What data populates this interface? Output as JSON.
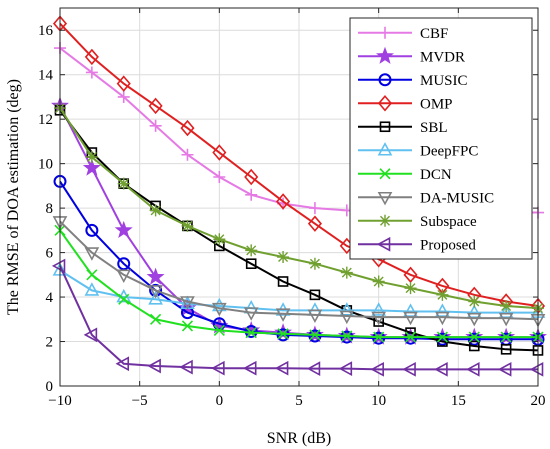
{
  "chart_data": {
    "type": "line",
    "title": "",
    "xlabel": "SNR (dB)",
    "ylabel": "The RMSE of DOA estimation (deg)",
    "xlim": [
      -10,
      20
    ],
    "ylim": [
      0,
      17
    ],
    "xticks": [
      -10,
      -5,
      0,
      5,
      10,
      15,
      20
    ],
    "yticks": [
      0,
      2,
      4,
      6,
      8,
      10,
      12,
      14,
      16
    ],
    "xtick_labels": [
      "−10",
      "−5",
      "0",
      "5",
      "10",
      "15",
      "20"
    ],
    "ytick_labels": [
      "0",
      "2",
      "4",
      "6",
      "8",
      "10",
      "12",
      "14",
      "16"
    ],
    "grid": true,
    "legend_position": "top-right",
    "x": [
      -10,
      -8,
      -6,
      -4,
      -2,
      0,
      2,
      4,
      6,
      8,
      10,
      12,
      14,
      16,
      18,
      20
    ],
    "series": [
      {
        "name": "CBF",
        "color": "#e57ae5",
        "marker": "plus",
        "values": [
          15.2,
          14.1,
          13.0,
          11.7,
          10.4,
          9.4,
          8.6,
          8.2,
          8.0,
          7.9,
          7.85,
          7.85,
          7.8,
          7.8,
          7.8,
          7.8
        ]
      },
      {
        "name": "MVDR",
        "color": "#a040e0",
        "marker": "star",
        "values": [
          12.6,
          9.8,
          7.0,
          4.9,
          3.5,
          2.7,
          2.5,
          2.4,
          2.3,
          2.25,
          2.2,
          2.2,
          2.2,
          2.2,
          2.2,
          2.2
        ]
      },
      {
        "name": "MUSIC",
        "color": "#0000e0",
        "marker": "circle",
        "values": [
          9.2,
          7.0,
          5.5,
          4.3,
          3.3,
          2.8,
          2.45,
          2.3,
          2.25,
          2.2,
          2.15,
          2.15,
          2.1,
          2.1,
          2.1,
          2.1
        ]
      },
      {
        "name": "OMP",
        "color": "#e02020",
        "marker": "diamond",
        "values": [
          16.3,
          14.8,
          13.6,
          12.6,
          11.6,
          10.5,
          9.4,
          8.3,
          7.3,
          6.3,
          5.7,
          5.0,
          4.5,
          4.1,
          3.8,
          3.6
        ]
      },
      {
        "name": "SBL",
        "color": "#000000",
        "marker": "square",
        "values": [
          12.4,
          10.5,
          9.1,
          8.1,
          7.2,
          6.3,
          5.5,
          4.7,
          4.1,
          3.4,
          2.9,
          2.4,
          2.0,
          1.8,
          1.65,
          1.6
        ]
      },
      {
        "name": "DeepFPC",
        "color": "#60c0f0",
        "marker": "triangle-up",
        "values": [
          5.2,
          4.3,
          4.0,
          3.9,
          3.7,
          3.6,
          3.5,
          3.4,
          3.4,
          3.4,
          3.4,
          3.35,
          3.35,
          3.3,
          3.3,
          3.3
        ]
      },
      {
        "name": "DCN",
        "color": "#20e020",
        "marker": "x",
        "values": [
          7.0,
          5.0,
          3.9,
          3.0,
          2.7,
          2.5,
          2.4,
          2.35,
          2.3,
          2.25,
          2.2,
          2.2,
          2.2,
          2.2,
          2.2,
          2.2
        ]
      },
      {
        "name": "DA-MUSIC",
        "color": "#808080",
        "marker": "triangle-down",
        "values": [
          7.4,
          6.0,
          5.0,
          4.3,
          3.8,
          3.5,
          3.3,
          3.25,
          3.2,
          3.15,
          3.1,
          3.1,
          3.1,
          3.05,
          3.05,
          3.0
        ]
      },
      {
        "name": "Subspace",
        "color": "#70a030",
        "marker": "asterisk",
        "values": [
          12.5,
          10.3,
          9.1,
          7.9,
          7.2,
          6.6,
          6.1,
          5.8,
          5.5,
          5.1,
          4.7,
          4.4,
          4.1,
          3.8,
          3.6,
          3.5
        ]
      },
      {
        "name": "Proposed",
        "color": "#7030a0",
        "marker": "triangle-left",
        "values": [
          5.4,
          2.3,
          1.0,
          0.9,
          0.85,
          0.8,
          0.8,
          0.8,
          0.78,
          0.78,
          0.75,
          0.75,
          0.75,
          0.75,
          0.75,
          0.75
        ]
      }
    ]
  }
}
